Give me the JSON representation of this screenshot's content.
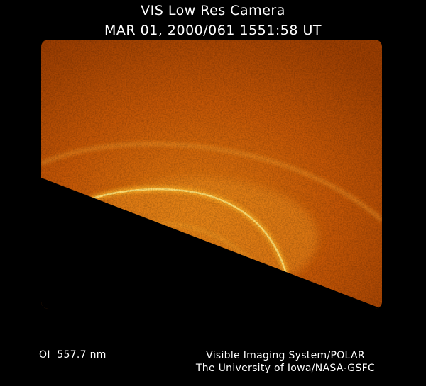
{
  "header": {
    "title": "VIS Low Res Camera",
    "timestamp": "MAR 01, 2000/061 1551:58 UT"
  },
  "footer": {
    "wavelength": "OI  557.7 nm",
    "credit_line1": "Visible Imaging System/POLAR",
    "credit_line2": "The University of Iowa/NASA-GSFC"
  },
  "colors": {
    "background": "#000000",
    "sky_glow": "#c85a06",
    "aurora": "#ffb32a",
    "text": "#ffffff"
  }
}
